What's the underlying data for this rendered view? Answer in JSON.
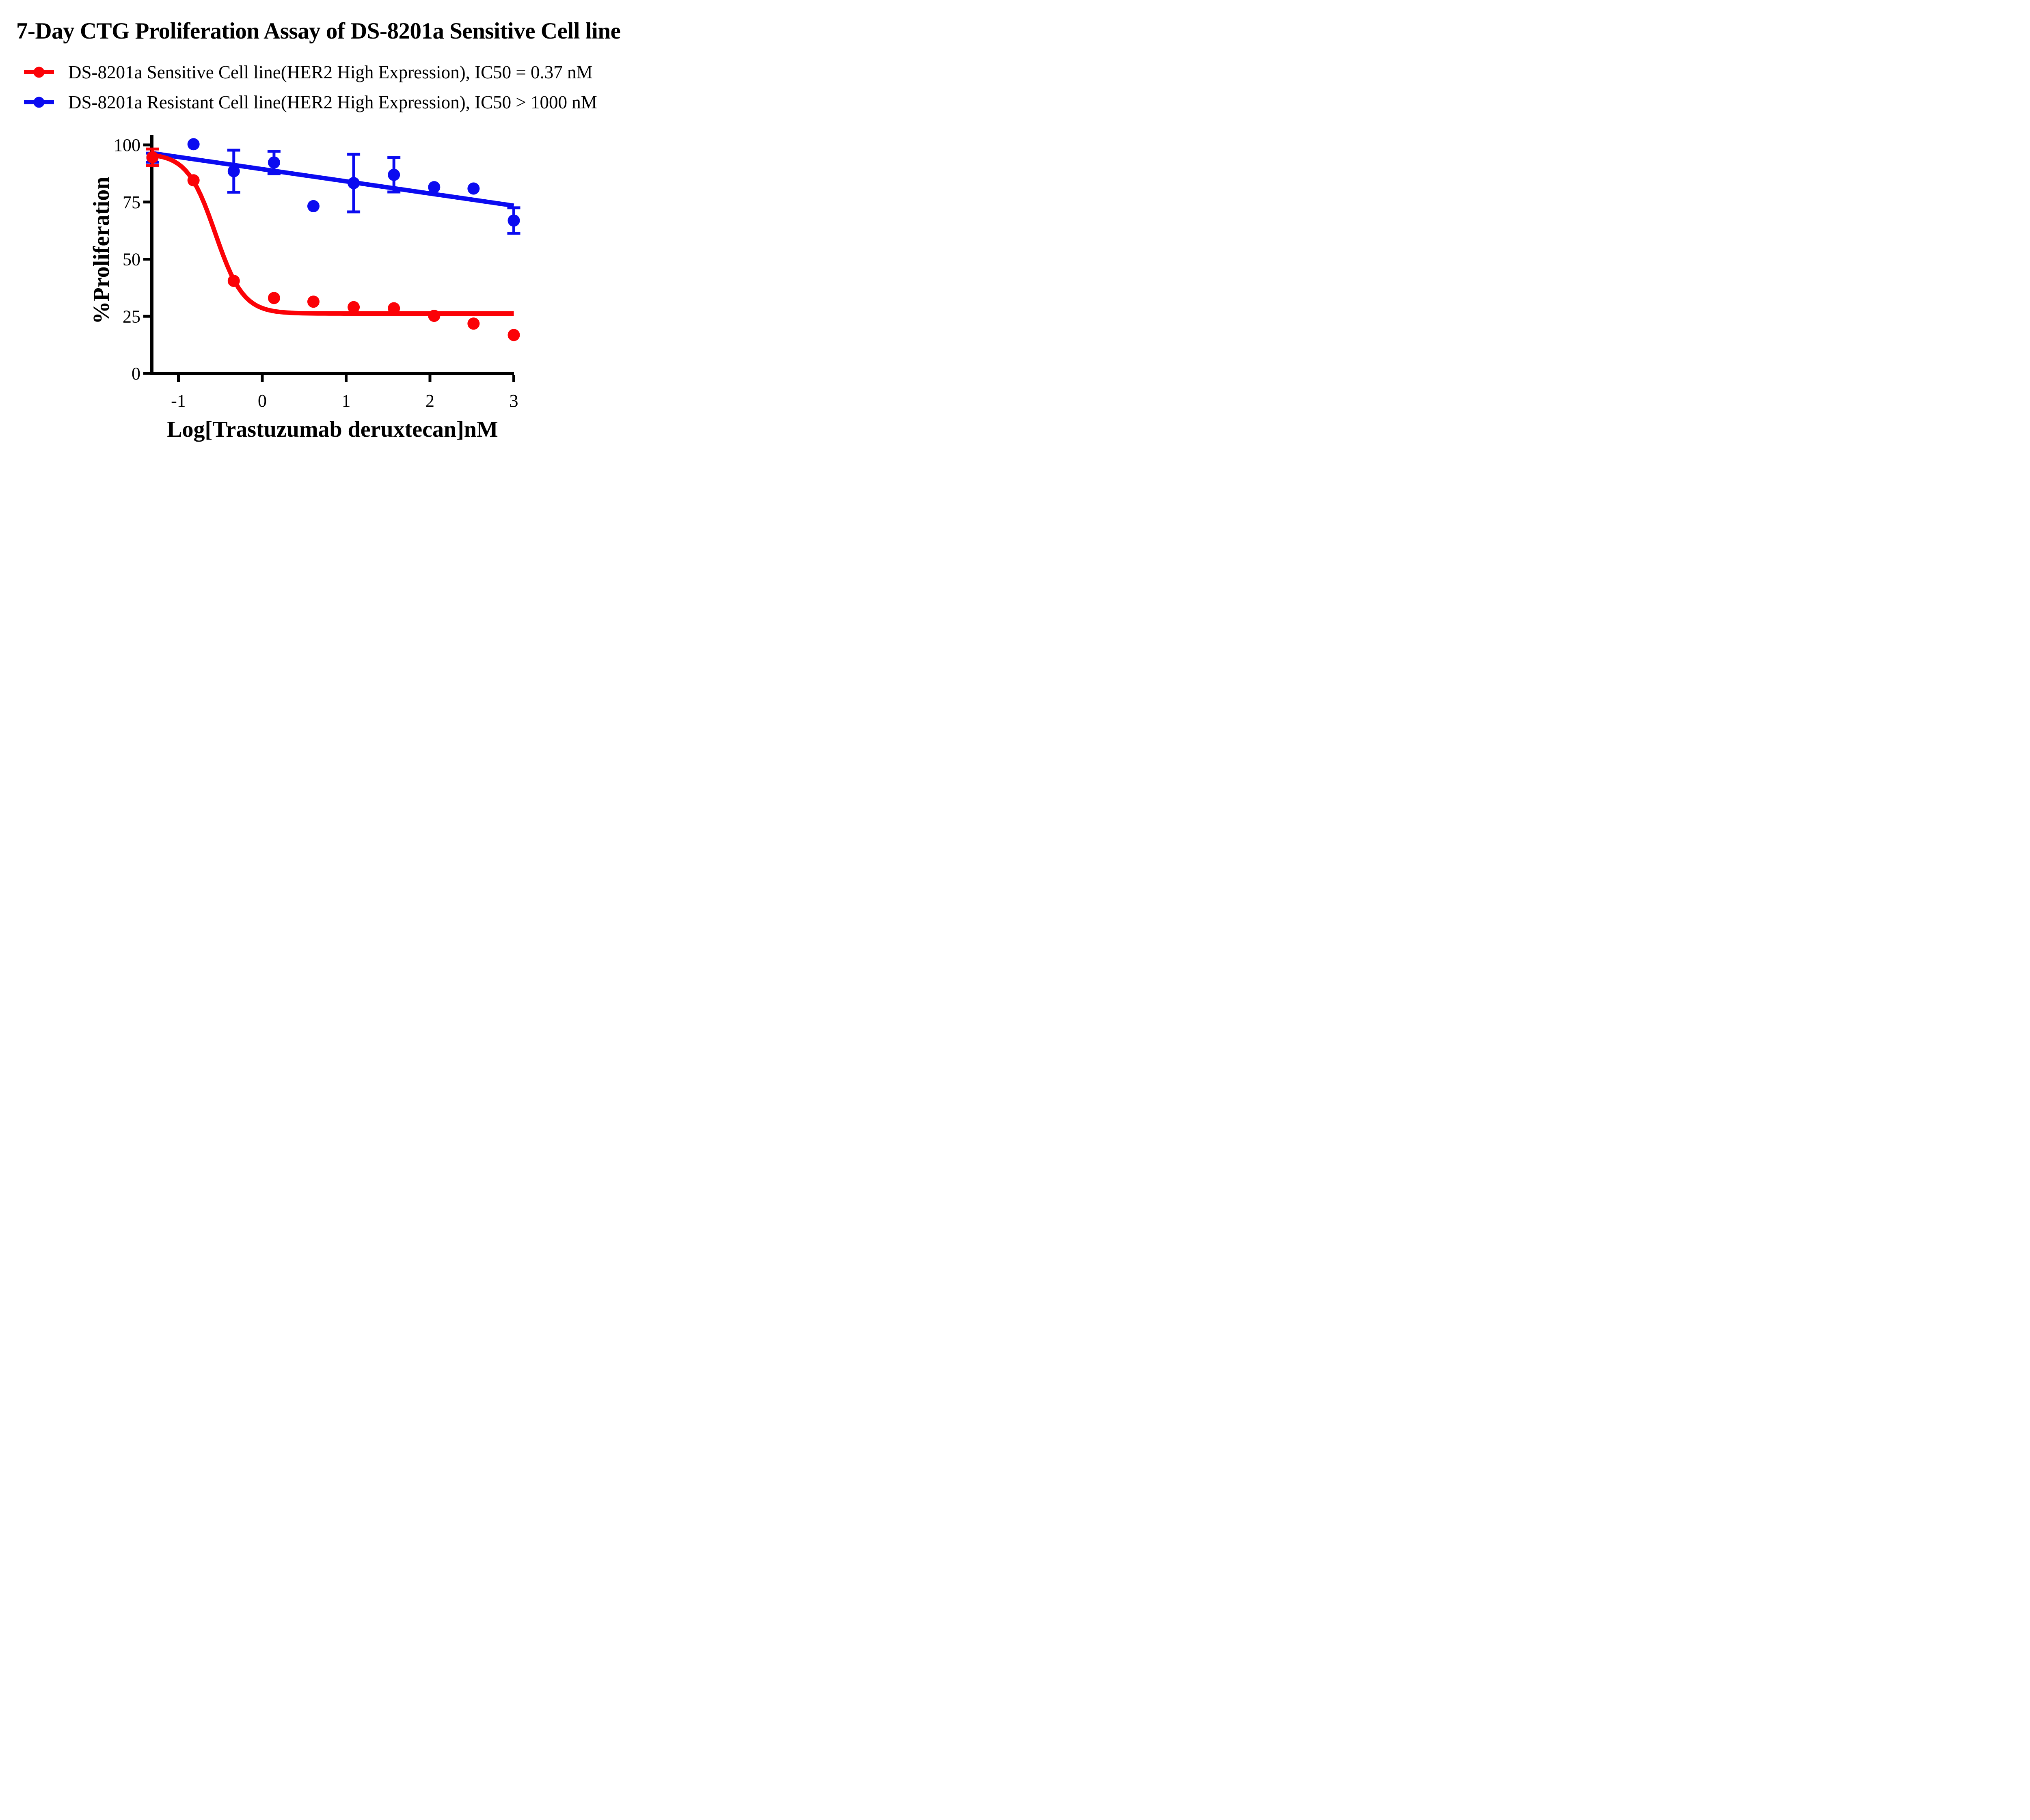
{
  "title": "7-Day CTG Proliferation Assay of DS-8201a Sensitive Cell line",
  "legend": {
    "items": [
      {
        "series": "sensitive",
        "label": "DS-8201a Sensitive Cell line(HER2 High Expression), IC50 = 0.37 nM",
        "color": "#fb0207"
      },
      {
        "series": "resistant",
        "label": "DS-8201a Resistant Cell line(HER2 High Expression), IC50 > 1000 nM",
        "color": "#0b0bf0"
      }
    ]
  },
  "chart_data": {
    "type": "scatter",
    "title": "7-Day CTG Proliferation Assay of DS-8201a Sensitive Cell line",
    "xlabel": "Log[Trastuzumab deruxtecan]nM",
    "ylabel": "%Proliferation",
    "x_ticks": [
      -1,
      0,
      1,
      2,
      3
    ],
    "y_ticks": [
      0,
      25,
      50,
      75,
      100
    ],
    "x_range": [
      -1.32,
      3.0
    ],
    "y_range": [
      0,
      104
    ],
    "grid": false,
    "legend_position": "top-left",
    "axis_color": "#000000",
    "background": "#ffffff",
    "series": [
      {
        "name": "DS-8201a Sensitive Cell line(HER2 High Expression)",
        "ic50_label": "IC50 = 0.37 nM",
        "color": "#fb0207",
        "marker": "circle",
        "points": [
          {
            "x": -1.31,
            "y": 94.6,
            "err": 3.6
          },
          {
            "x": -0.82,
            "y": 84.5
          },
          {
            "x": -0.34,
            "y": 40.5
          },
          {
            "x": 0.14,
            "y": 33.0
          },
          {
            "x": 0.61,
            "y": 31.4
          },
          {
            "x": 1.09,
            "y": 29.0
          },
          {
            "x": 1.57,
            "y": 28.5
          },
          {
            "x": 2.05,
            "y": 25.2
          },
          {
            "x": 2.52,
            "y": 21.8
          },
          {
            "x": 3.0,
            "y": 16.8
          }
        ],
        "fit": {
          "type": "sigmoid-4pl",
          "top": 96.3,
          "bottom": 26.2,
          "log_ic50": -0.56,
          "hill": 2.6
        }
      },
      {
        "name": "DS-8201a Resistant Cell line(HER2 High Expression)",
        "ic50_label": "IC50 > 1000 nM",
        "color": "#0b0bf0",
        "marker": "circle",
        "points": [
          {
            "x": -1.31,
            "y": 94.4,
            "err": 2.0
          },
          {
            "x": -0.82,
            "y": 100.3
          },
          {
            "x": -0.34,
            "y": 88.5,
            "err": 9.2
          },
          {
            "x": 0.14,
            "y": 92.3,
            "err": 4.9
          },
          {
            "x": 0.61,
            "y": 73.2
          },
          {
            "x": 1.09,
            "y": 83.3,
            "err": 12.6
          },
          {
            "x": 1.57,
            "y": 86.9,
            "err": 7.5
          },
          {
            "x": 2.05,
            "y": 81.5
          },
          {
            "x": 2.52,
            "y": 80.9
          },
          {
            "x": 3.0,
            "y": 66.9,
            "err": 5.6
          }
        ],
        "fit": {
          "type": "linear",
          "x1": -1.317,
          "y1": 96.4,
          "x2": 3.0,
          "y2": 73.4
        }
      }
    ]
  }
}
